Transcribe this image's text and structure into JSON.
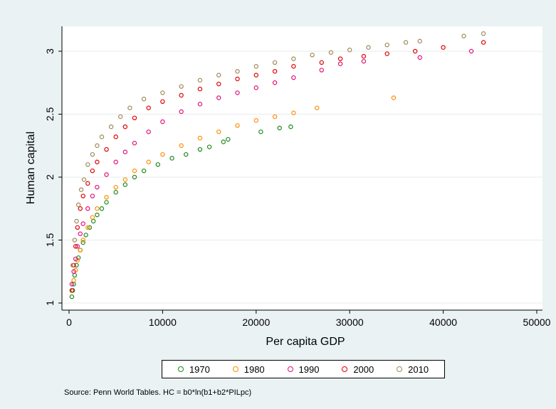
{
  "chart_data": {
    "type": "scatter",
    "title": "",
    "xlabel": "Per capita GDP",
    "ylabel": "Human capital",
    "xlim": [
      0,
      50000
    ],
    "ylim": [
      0.97,
      3.2
    ],
    "xticks": [
      0,
      10000,
      20000,
      30000,
      40000,
      50000
    ],
    "xtick_labels": [
      "0",
      "10000",
      "20000",
      "30000",
      "40000",
      "50000"
    ],
    "yticks": [
      1,
      1.5,
      2,
      2.5,
      3
    ],
    "ytick_labels": [
      "1",
      "1.5",
      "2",
      "2.5",
      "3"
    ],
    "grid": "horizontal",
    "legend_position": "bottom",
    "series": [
      {
        "name": "1970",
        "color": "#1a8a1a",
        "points": [
          [
            300,
            1.05
          ],
          [
            400,
            1.1
          ],
          [
            500,
            1.15
          ],
          [
            600,
            1.22
          ],
          [
            800,
            1.3
          ],
          [
            1000,
            1.36
          ],
          [
            1200,
            1.42
          ],
          [
            1500,
            1.48
          ],
          [
            1800,
            1.54
          ],
          [
            2200,
            1.6
          ],
          [
            2600,
            1.65
          ],
          [
            3000,
            1.7
          ],
          [
            3500,
            1.75
          ],
          [
            4000,
            1.8
          ],
          [
            5000,
            1.88
          ],
          [
            6000,
            1.94
          ],
          [
            7000,
            2.0
          ],
          [
            8000,
            2.05
          ],
          [
            9500,
            2.1
          ],
          [
            11000,
            2.15
          ],
          [
            12500,
            2.18
          ],
          [
            14000,
            2.22
          ],
          [
            15000,
            2.24
          ],
          [
            16500,
            2.28
          ],
          [
            17000,
            2.3
          ],
          [
            20500,
            2.36
          ],
          [
            22500,
            2.39
          ],
          [
            23700,
            2.4
          ]
        ]
      },
      {
        "name": "1980",
        "color": "#ff8c00",
        "points": [
          [
            300,
            1.1
          ],
          [
            500,
            1.18
          ],
          [
            700,
            1.26
          ],
          [
            900,
            1.34
          ],
          [
            1200,
            1.42
          ],
          [
            1500,
            1.5
          ],
          [
            2000,
            1.6
          ],
          [
            2500,
            1.68
          ],
          [
            3000,
            1.75
          ],
          [
            4000,
            1.84
          ],
          [
            5000,
            1.92
          ],
          [
            6000,
            1.98
          ],
          [
            7000,
            2.05
          ],
          [
            8500,
            2.12
          ],
          [
            10000,
            2.18
          ],
          [
            12000,
            2.25
          ],
          [
            14000,
            2.31
          ],
          [
            16000,
            2.36
          ],
          [
            18000,
            2.41
          ],
          [
            20000,
            2.45
          ],
          [
            22000,
            2.48
          ],
          [
            24000,
            2.51
          ],
          [
            26500,
            2.55
          ],
          [
            34700,
            2.63
          ]
        ]
      },
      {
        "name": "1990",
        "color": "#e0107a",
        "points": [
          [
            300,
            1.15
          ],
          [
            500,
            1.25
          ],
          [
            700,
            1.35
          ],
          [
            900,
            1.45
          ],
          [
            1200,
            1.55
          ],
          [
            1500,
            1.63
          ],
          [
            2000,
            1.75
          ],
          [
            2500,
            1.85
          ],
          [
            3000,
            1.92
          ],
          [
            4000,
            2.02
          ],
          [
            5000,
            2.12
          ],
          [
            6000,
            2.2
          ],
          [
            7000,
            2.27
          ],
          [
            8500,
            2.36
          ],
          [
            10000,
            2.44
          ],
          [
            12000,
            2.52
          ],
          [
            14000,
            2.58
          ],
          [
            16000,
            2.63
          ],
          [
            18000,
            2.67
          ],
          [
            20000,
            2.71
          ],
          [
            22000,
            2.75
          ],
          [
            24000,
            2.79
          ],
          [
            27000,
            2.85
          ],
          [
            29000,
            2.9
          ],
          [
            31500,
            2.92
          ],
          [
            37500,
            2.95
          ],
          [
            43000,
            3.0
          ]
        ]
      },
      {
        "name": "2000",
        "color": "#e00000",
        "points": [
          [
            300,
            1.1
          ],
          [
            500,
            1.3
          ],
          [
            700,
            1.45
          ],
          [
            900,
            1.6
          ],
          [
            1200,
            1.75
          ],
          [
            1500,
            1.85
          ],
          [
            2000,
            1.95
          ],
          [
            2500,
            2.05
          ],
          [
            3000,
            2.12
          ],
          [
            4000,
            2.22
          ],
          [
            5000,
            2.32
          ],
          [
            6000,
            2.4
          ],
          [
            7000,
            2.47
          ],
          [
            8500,
            2.55
          ],
          [
            10000,
            2.6
          ],
          [
            12000,
            2.65
          ],
          [
            14000,
            2.7
          ],
          [
            16000,
            2.74
          ],
          [
            18000,
            2.78
          ],
          [
            20000,
            2.81
          ],
          [
            22000,
            2.84
          ],
          [
            24000,
            2.88
          ],
          [
            27000,
            2.91
          ],
          [
            29000,
            2.94
          ],
          [
            31500,
            2.96
          ],
          [
            34000,
            2.98
          ],
          [
            37000,
            3.0
          ],
          [
            40000,
            3.03
          ],
          [
            44300,
            3.07
          ]
        ]
      },
      {
        "name": "2010",
        "color": "#a08858",
        "points": [
          [
            400,
            1.3
          ],
          [
            600,
            1.5
          ],
          [
            800,
            1.65
          ],
          [
            1000,
            1.78
          ],
          [
            1300,
            1.9
          ],
          [
            1600,
            1.98
          ],
          [
            2000,
            2.1
          ],
          [
            2500,
            2.18
          ],
          [
            3000,
            2.25
          ],
          [
            3500,
            2.32
          ],
          [
            4500,
            2.4
          ],
          [
            5500,
            2.48
          ],
          [
            6500,
            2.55
          ],
          [
            8000,
            2.62
          ],
          [
            10000,
            2.67
          ],
          [
            12000,
            2.72
          ],
          [
            14000,
            2.77
          ],
          [
            16000,
            2.81
          ],
          [
            18000,
            2.84
          ],
          [
            20000,
            2.88
          ],
          [
            22000,
            2.91
          ],
          [
            24000,
            2.94
          ],
          [
            26000,
            2.97
          ],
          [
            28000,
            2.99
          ],
          [
            30000,
            3.01
          ],
          [
            32000,
            3.03
          ],
          [
            34000,
            3.05
          ],
          [
            36000,
            3.07
          ],
          [
            37500,
            3.08
          ],
          [
            42200,
            3.12
          ],
          [
            44300,
            3.14
          ]
        ]
      }
    ]
  },
  "legend": {
    "items": [
      {
        "label": "1970",
        "color": "#1a8a1a"
      },
      {
        "label": "1980",
        "color": "#ff8c00"
      },
      {
        "label": "1990",
        "color": "#e0107a"
      },
      {
        "label": "2000",
        "color": "#e00000"
      },
      {
        "label": "2010",
        "color": "#a08858"
      }
    ]
  },
  "source_note": "Source: Penn World Tables. HC = b0*ln(b1+b2*PILpc)"
}
